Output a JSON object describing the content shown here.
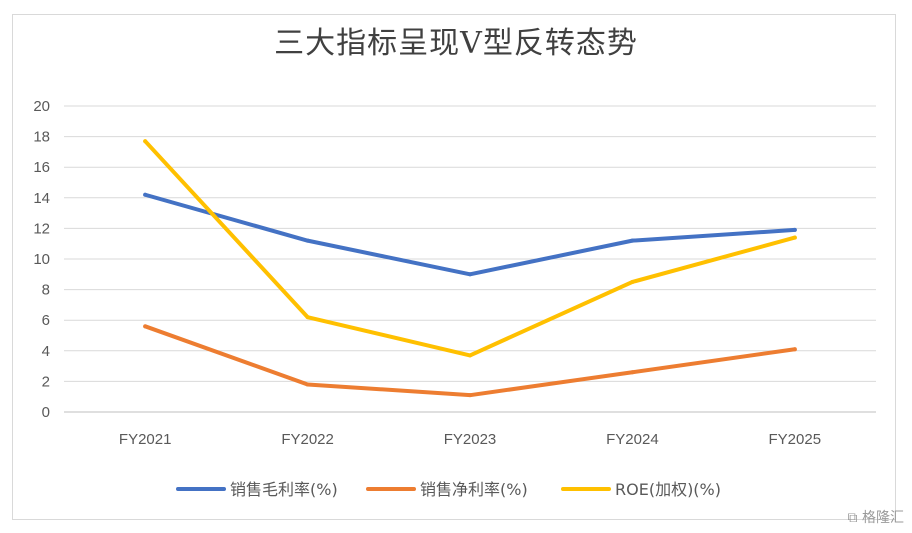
{
  "chart_data": {
    "type": "line",
    "title": "三大指标呈现V型反转态势",
    "categories": [
      "FY2021",
      "FY2022",
      "FY2023",
      "FY2024",
      "FY2025"
    ],
    "ylim": [
      0,
      20
    ],
    "yticks": [
      0,
      2,
      4,
      6,
      8,
      10,
      12,
      14,
      16,
      18,
      20
    ],
    "grid": true,
    "legend_position": "bottom",
    "series": [
      {
        "name": "销售毛利率(%)",
        "color": "#4472C4",
        "values": [
          14.2,
          11.2,
          9.0,
          11.2,
          11.9
        ]
      },
      {
        "name": "销售净利率(%)",
        "color": "#ED7D31",
        "values": [
          5.6,
          1.8,
          1.1,
          2.6,
          4.1
        ]
      },
      {
        "name": "ROE(加权)(%)",
        "color": "#FFC000",
        "values": [
          17.7,
          6.2,
          3.7,
          8.5,
          11.4
        ]
      }
    ]
  },
  "watermark": "格隆汇"
}
